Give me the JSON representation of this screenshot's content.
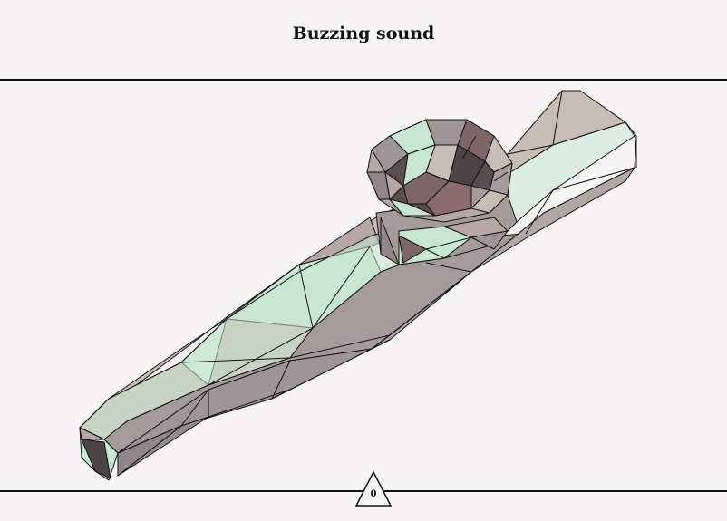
{
  "header": {
    "title": "Buzzing sound"
  },
  "counter": {
    "value": "0",
    "icon": "triangle-icon"
  },
  "model": {
    "object": "kazoo",
    "palette": {
      "mint": "#c9e6d4",
      "mint_light": "#d6eedc",
      "taupe": "#c8bdb4",
      "mauve": "#b7a6a6",
      "grey": "#9e9598",
      "dark": "#5a4c4f",
      "plum": "#7d6569",
      "edge": "#111111"
    }
  }
}
